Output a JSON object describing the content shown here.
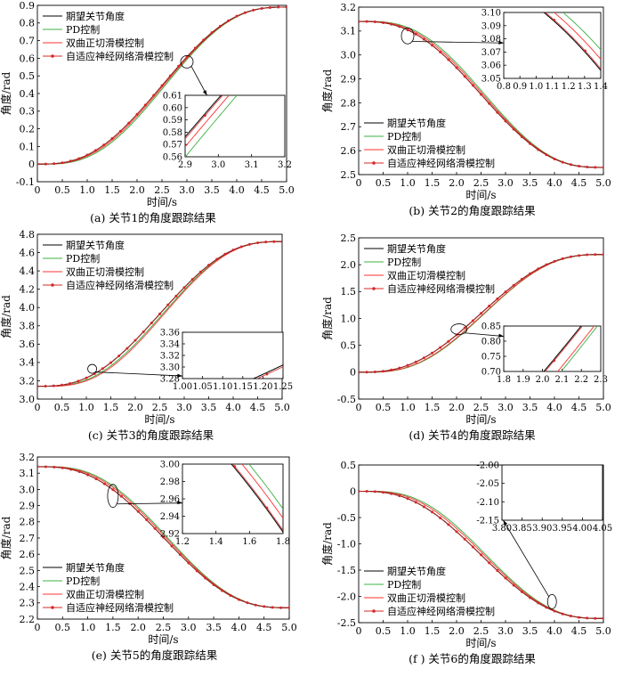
{
  "colors": {
    "desired": "#000000",
    "pd": "#3cb043",
    "tsmc": "#ff3030",
    "nn": "#d42828",
    "frame": "#000000"
  },
  "legend": [
    "期望关节角度",
    "PD控制",
    "双曲正切滑模控制",
    "自适应神经网络滑模控制"
  ],
  "chart_data": [
    {
      "type": "line",
      "caption": "(a)  关节1的角度跟踪结果",
      "xlabel": "时间/s",
      "ylabel": "角度/rad",
      "xlim": [
        0,
        5
      ],
      "ylim": [
        -0.1,
        0.9
      ],
      "xticks": [
        "0",
        "0.5",
        "1.0",
        "1.5",
        "2.0",
        "2.5",
        "3.0",
        "3.5",
        "4.0",
        "4.5",
        "5.0"
      ],
      "yticks": [
        "-0.1",
        "0",
        "0.1",
        "0.2",
        "0.3",
        "0.4",
        "0.5",
        "0.6",
        "0.7",
        "0.8",
        "0.9"
      ],
      "start": 0,
      "end": 0.89,
      "lags": {
        "pd": 0.12,
        "tsmc": 0.06,
        "nn": 0
      },
      "legend_position": "top-left",
      "inset": {
        "xlim": [
          2.9,
          3.2
        ],
        "ylim": [
          0.56,
          0.61
        ],
        "xticks": [
          "2.9",
          "3.0",
          "3.1",
          "3.2"
        ],
        "yticks": [
          "0.56",
          "0.57",
          "0.58",
          "0.59",
          "0.60",
          "0.61"
        ],
        "zoom_center": [
          3.0,
          0.58
        ]
      }
    },
    {
      "type": "line",
      "caption": "(b)  关节2的角度跟踪结果",
      "xlabel": "时间/s",
      "ylabel": "角度/rad",
      "xlim": [
        0,
        5
      ],
      "ylim": [
        2.5,
        3.2
      ],
      "xticks": [
        "0",
        "0.5",
        "1.0",
        "1.5",
        "2.0",
        "2.5",
        "3.0",
        "3.5",
        "4.0",
        "4.5",
        "5.0"
      ],
      "yticks": [
        "2.5",
        "2.6",
        "2.7",
        "2.8",
        "2.9",
        "3.0",
        "3.1",
        "3.2"
      ],
      "start": 3.14,
      "end": 2.53,
      "lags": {
        "pd": 0.15,
        "tsmc": 0.08,
        "nn": 0
      },
      "legend_position": "bottom-left",
      "inset": {
        "xlim": [
          0.8,
          1.4
        ],
        "ylim": [
          3.05,
          3.1
        ],
        "xticks": [
          "0.8",
          "0.9",
          "1.0",
          "1.1",
          "1.2",
          "1.3",
          "1.4"
        ],
        "yticks": [
          "3.05",
          "3.06",
          "3.07",
          "3.08",
          "3.09",
          "3.10"
        ],
        "zoom_center": [
          1.0,
          3.08
        ]
      }
    },
    {
      "type": "line",
      "caption": "(c)  关节3的角度跟踪结果",
      "xlabel": "时间/s",
      "ylabel": "角度/rad",
      "xlim": [
        0,
        5
      ],
      "ylim": [
        3.0,
        4.8
      ],
      "xticks": [
        "0",
        "0.5",
        "1.0",
        "1.5",
        "2.0",
        "2.5",
        "3.0",
        "3.5",
        "4.0",
        "4.5",
        "5.0"
      ],
      "yticks": [
        "3.0",
        "3.2",
        "3.4",
        "3.6",
        "3.8",
        "4.0",
        "4.2",
        "4.4",
        "4.6",
        "4.8"
      ],
      "start": 3.14,
      "end": 4.72,
      "lags": {
        "pd": 0.12,
        "tsmc": 0.18,
        "nn": 0
      },
      "legend_position": "top-left",
      "inset": {
        "xlim": [
          1.0,
          1.25
        ],
        "ylim": [
          3.28,
          3.36
        ],
        "xticks": [
          "1.00",
          "1.05",
          "1.10",
          "1.15",
          "1.20",
          "1.25"
        ],
        "yticks": [
          "3.28",
          "3.30",
          "3.32",
          "3.34",
          "3.36"
        ],
        "zoom_center": [
          1.12,
          3.33
        ]
      }
    },
    {
      "type": "line",
      "caption": "(d)  关节4的角度跟踪结果",
      "xlabel": "时间/s",
      "ylabel": "角度/rad",
      "xlim": [
        0,
        5
      ],
      "ylim": [
        -0.5,
        2.5
      ],
      "xticks": [
        "0",
        "0.5",
        "1.0",
        "1.5",
        "2.0",
        "2.5",
        "3.0",
        "3.5",
        "4.0",
        "4.5",
        "5.0"
      ],
      "yticks": [
        "-0.5",
        "0",
        "0.5",
        "1.0",
        "1.5",
        "2.0",
        "2.5"
      ],
      "start": 0,
      "end": 2.19,
      "lags": {
        "pd": 0.15,
        "tsmc": 0.12,
        "nn": 0
      },
      "legend_position": "top-left",
      "inset": {
        "xlim": [
          1.8,
          2.3
        ],
        "ylim": [
          0.7,
          0.85
        ],
        "xticks": [
          "1.8",
          "1.9",
          "2.0",
          "2.1",
          "2.2",
          "2.3"
        ],
        "yticks": [
          "0.70",
          "0.75",
          "0.80",
          "0.85"
        ],
        "zoom_center": [
          2.05,
          0.8
        ]
      }
    },
    {
      "type": "line",
      "caption": "(e)  关节5的角度跟踪结果",
      "xlabel": "时间/s",
      "ylabel": "角度/rad",
      "xlim": [
        0,
        5
      ],
      "ylim": [
        2.2,
        3.2
      ],
      "xticks": [
        "0",
        "0.5",
        "1.0",
        "1.5",
        "2.0",
        "2.5",
        "3.0",
        "3.5",
        "4.0",
        "4.5",
        "5.0"
      ],
      "yticks": [
        "2.2",
        "2.3",
        "2.4",
        "2.5",
        "2.6",
        "2.7",
        "2.8",
        "2.9",
        "3.0",
        "3.1",
        "3.2"
      ],
      "start": 3.14,
      "end": 2.27,
      "lags": {
        "pd": 0.15,
        "tsmc": 0.09,
        "nn": 0
      },
      "legend_position": "bottom-left",
      "inset": {
        "xlim": [
          1.2,
          1.8
        ],
        "ylim": [
          2.92,
          3.0
        ],
        "xticks": [
          "1.2",
          "1.4",
          "1.6",
          "1.8"
        ],
        "yticks": [
          "2.92",
          "2.94",
          "2.96",
          "2.98",
          "3.00"
        ],
        "zoom_center": [
          1.5,
          2.96
        ]
      }
    },
    {
      "type": "line",
      "caption": "(f )  关节6的角度跟踪结果",
      "xlabel": "时间/s",
      "ylabel": "角度/rad",
      "xlim": [
        0,
        5
      ],
      "ylim": [
        -2.5,
        0.5
      ],
      "xticks": [
        "0",
        "0.5",
        "1.0",
        "1.5",
        "2.0",
        "2.5",
        "3.0",
        "3.5",
        "4.0",
        "4.5",
        "5.0"
      ],
      "yticks": [
        "-2.5",
        "-2.0",
        "-1.5",
        "-1.0",
        "-0.5",
        "0",
        "0.5"
      ],
      "start": 0,
      "end": -2.42,
      "lags": {
        "pd": 0.2,
        "tsmc": 0.12,
        "nn": 0
      },
      "legend_position": "bottom-left",
      "inset": {
        "xlim": [
          3.8,
          4.05
        ],
        "ylim": [
          -2.15,
          -2.0
        ],
        "xticks": [
          "3.80",
          "3.85",
          "3.90",
          "3.95",
          "4.00",
          "4.05"
        ],
        "yticks": [
          "-2.15",
          "-2.10",
          "-2.05",
          "-2.00"
        ],
        "zoom_center": [
          3.95,
          -2.1
        ]
      }
    }
  ]
}
